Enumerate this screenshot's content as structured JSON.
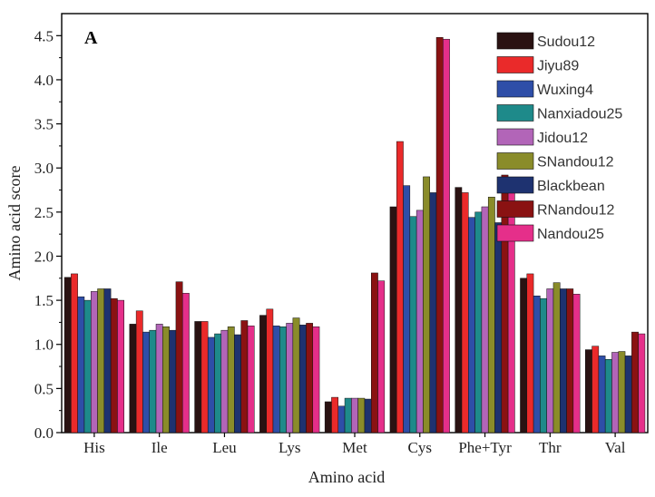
{
  "chart_data": {
    "type": "bar",
    "panel_label": "A",
    "xlabel": "Amino acid",
    "ylabel": "Amino acid score",
    "ylim": [
      0,
      4.75
    ],
    "yticks": [
      0.0,
      0.5,
      1.0,
      1.5,
      2.0,
      2.5,
      3.0,
      3.5,
      4.0,
      4.5
    ],
    "ytick_labels": [
      "0.0",
      "0.5",
      "1.0",
      "1.5",
      "2.0",
      "2.5",
      "3.0",
      "3.5",
      "4.0",
      "4.5"
    ],
    "grid": false,
    "legend_position": "top-right",
    "categories": [
      "His",
      "Ile",
      "Leu",
      "Lys",
      "Met",
      "Cys",
      "Phe+Tyr",
      "Thr",
      "Val"
    ],
    "series": [
      {
        "name": "Sudou12",
        "color": "#2a1212",
        "values": [
          1.76,
          1.23,
          1.26,
          1.33,
          0.35,
          2.56,
          2.78,
          1.75,
          0.94
        ]
      },
      {
        "name": "Jiyu89",
        "color": "#ea2a2a",
        "values": [
          1.8,
          1.38,
          1.26,
          1.4,
          0.4,
          3.3,
          2.72,
          1.8,
          0.98
        ]
      },
      {
        "name": "Wuxing4",
        "color": "#2e4ea8",
        "values": [
          1.54,
          1.14,
          1.08,
          1.21,
          0.3,
          2.8,
          2.44,
          1.55,
          0.87
        ]
      },
      {
        "name": "Nanxiadou25",
        "color": "#1e8a8a",
        "values": [
          1.5,
          1.16,
          1.12,
          1.2,
          0.39,
          2.45,
          2.5,
          1.52,
          0.83
        ]
      },
      {
        "name": "Jidou12",
        "color": "#b265b8",
        "values": [
          1.6,
          1.23,
          1.16,
          1.24,
          0.39,
          2.52,
          2.56,
          1.63,
          0.91
        ]
      },
      {
        "name": "SNandou12",
        "color": "#8a8c2a",
        "values": [
          1.63,
          1.2,
          1.2,
          1.3,
          0.39,
          2.9,
          2.67,
          1.7,
          0.92
        ]
      },
      {
        "name": "Blackbean",
        "color": "#1e3270",
        "values": [
          1.63,
          1.16,
          1.11,
          1.22,
          0.38,
          2.72,
          2.38,
          1.63,
          0.87
        ]
      },
      {
        "name": "RNandou12",
        "color": "#8a1212",
        "values": [
          1.52,
          1.71,
          1.27,
          1.24,
          1.81,
          4.48,
          2.92,
          1.63,
          1.14
        ]
      },
      {
        "name": "Nandou25",
        "color": "#e52f8a",
        "values": [
          1.5,
          1.58,
          1.21,
          1.2,
          1.72,
          4.46,
          2.8,
          1.57,
          1.12
        ]
      }
    ]
  }
}
